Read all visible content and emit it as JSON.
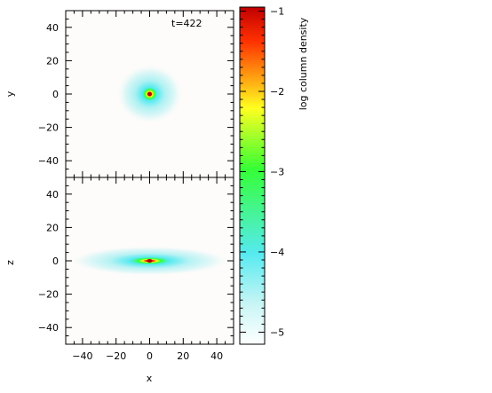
{
  "chart_data": [
    {
      "type": "heatmap",
      "panel": "x-y",
      "annotation": "t=422",
      "xlabel": "x",
      "ylabel": "y",
      "xlim": [
        -50,
        50
      ],
      "ylim": [
        -50,
        50
      ],
      "xticks": [
        -40,
        -20,
        0,
        20,
        40
      ],
      "yticks": [
        -40,
        -20,
        0,
        20,
        40
      ],
      "show_x_ticklabels": false,
      "blob": {
        "center": [
          0,
          0
        ],
        "peak_log_density": -1.0,
        "radius_x": 20,
        "radius_y": 18
      }
    },
    {
      "type": "heatmap",
      "panel": "x-z",
      "xlabel": "x",
      "ylabel": "z",
      "xlim": [
        -50,
        50
      ],
      "ylim": [
        -50,
        50
      ],
      "xticks": [
        -40,
        -20,
        0,
        20,
        40
      ],
      "yticks": [
        -40,
        -20,
        0,
        20,
        40
      ],
      "show_x_ticklabels": true,
      "blob": {
        "center": [
          0,
          0
        ],
        "peak_log_density": -1.0,
        "radius_x": 48,
        "radius_y": 9
      }
    }
  ],
  "colorbar": {
    "label": "log column density",
    "range": [
      -5.15,
      -0.95
    ],
    "ticks": [
      -1,
      -2,
      -3,
      -4,
      -5
    ],
    "colors": [
      "#ffffff",
      "#c8f5f5",
      "#55eaf0",
      "#35ff35",
      "#ffff20",
      "#ff3000",
      "#c00000"
    ]
  }
}
